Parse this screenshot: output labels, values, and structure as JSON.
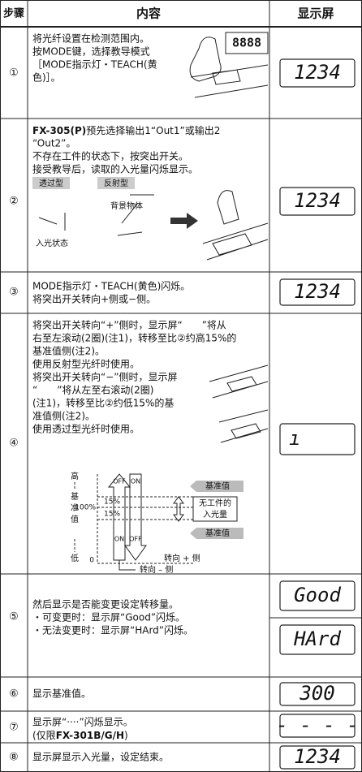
{
  "header": {
    "step": "步骤",
    "content": "内容",
    "display": "显示屏"
  },
  "rows": [
    {
      "step": "①",
      "lines": [
        "将光纤设置在检测范围内。",
        "按MODE键，选择教导模式",
        "［MODE指示灯・TEACH(黄",
        "色)］。"
      ],
      "figure_display": "8888",
      "display": [
        "1234"
      ]
    },
    {
      "step": "②",
      "lines": [
        [
          "FX-305(P)",
          "预先选择输出1“Out1”或输出2"
        ],
        "“Out2”。",
        "不存在工件的状态下，按突出开关。",
        "接受教导后，读取的入光量闪烁显示。"
      ],
      "labels": [
        "透过型",
        "反射型",
        "背景物体",
        "入光状态"
      ],
      "display": [
        "1234"
      ]
    },
    {
      "step": "③",
      "lines": [
        "MODE指示灯・TEACH(黄色)闪烁。",
        "将突出开关转向+侧或−侧。"
      ],
      "display": [
        "1234"
      ]
    },
    {
      "step": "④",
      "lines": [
        "将突出开关转向“+”侧时，显示屏“　　”将从",
        "右至左滚动(2圈)(注1)，转移至比②约高15%的",
        "基准值侧(注2)。",
        "使用反射型光纤时使用。",
        "将突出开关转向“−”侧时，显示屏",
        "“　　”将从左至右滚动(2圈)",
        "(注1)，转移至比②约低15%的基",
        "准值侧(注2)。",
        "使用透过型光纤时使用。"
      ],
      "diagram": {
        "high": "高",
        "ref": [
          "基",
          "准",
          "值"
        ],
        "pct100": "100%",
        "low": "低",
        "zero": "0",
        "band": [
          "15%",
          "15%"
        ],
        "states": [
          "OFF",
          "ON",
          "ON",
          "OFF"
        ],
        "tags": [
          "基准值",
          "基准值"
        ],
        "no_work": [
          "无工件的",
          "入光量"
        ],
        "turns": [
          "转向 + 侧",
          "转向 – 侧"
        ]
      },
      "display": [
        "ı"
      ]
    },
    {
      "step": "⑤",
      "lines": [
        "然后显示是否能变更设定转移量。",
        "・可变更时：显示屏“Good”闪烁。",
        "・无法变更时：显示屏“HArd”闪烁。"
      ],
      "display": [
        "Good",
        "HArd"
      ]
    },
    {
      "step": "⑥",
      "lines": [
        "显示基准值。"
      ],
      "display": [
        "300"
      ]
    },
    {
      "step": "⑦",
      "lines": [
        "显示屏“····”闪烁显示。",
        [
          "(仅限",
          "FX-301B/G/H",
          ")"
        ]
      ],
      "display": [
        "- - - -"
      ]
    },
    {
      "step": "⑧",
      "lines": [
        "显示屏显示入光量，设定结束。"
      ],
      "display": [
        "1234"
      ]
    }
  ]
}
